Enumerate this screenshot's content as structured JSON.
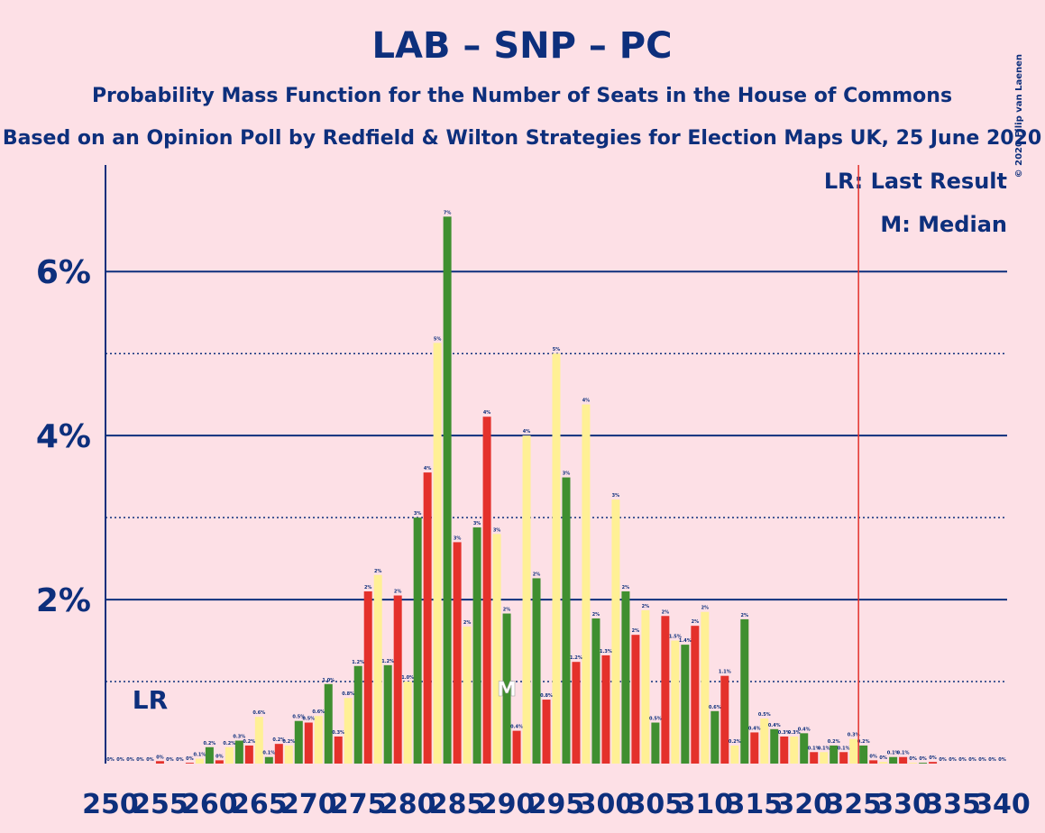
{
  "chart_data": {
    "type": "bar",
    "title": "LAB – SNP – PC",
    "subtitle": "Probability Mass Function for the Number of Seats in the House of Commons",
    "subtitle2": "Based on an Opinion Poll by Redfield & Wilton Strategies for Election Maps UK, 25 June 2020",
    "copyright": "© 2020 Filip van Laenen",
    "legend": [
      "LR: Last Result",
      "M: Median"
    ],
    "last_result": {
      "x": 254,
      "label": "LR"
    },
    "median": {
      "x": 290,
      "label": "M"
    },
    "majority_line": 325.5,
    "x": [
      250,
      251,
      252,
      253,
      254,
      255,
      256,
      257,
      258,
      259,
      260,
      261,
      262,
      263,
      264,
      265,
      266,
      267,
      268,
      269,
      270,
      271,
      272,
      273,
      274,
      275,
      276,
      277,
      278,
      279,
      280,
      281,
      282,
      283,
      284,
      285,
      286,
      287,
      288,
      289,
      290,
      291,
      292,
      293,
      294,
      295,
      296,
      297,
      298,
      299,
      300,
      301,
      302,
      303,
      304,
      305,
      306,
      307,
      308,
      309,
      310,
      311,
      312,
      313,
      314,
      315,
      316,
      317,
      318,
      319,
      320,
      321,
      322,
      323,
      324,
      325,
      326,
      327,
      328,
      329,
      330,
      331,
      332,
      333,
      334,
      335,
      336,
      337,
      338,
      339,
      340
    ],
    "values": [
      0,
      0,
      0,
      0,
      0,
      0.03,
      0,
      0,
      0.01,
      0.06,
      0.2,
      0.04,
      0.2,
      0.28,
      0.22,
      0.57,
      0.08,
      0.24,
      0.22,
      0.52,
      0.5,
      0.58,
      0.97,
      0.33,
      0.8,
      1.19,
      2.1,
      2.3,
      1.2,
      2.05,
      1.0,
      3.0,
      3.55,
      5.13,
      6.67,
      2.7,
      1.67,
      2.88,
      4.23,
      2.8,
      1.83,
      0.4,
      4.0,
      2.26,
      0.78,
      5.0,
      3.49,
      1.24,
      4.38,
      1.77,
      1.32,
      3.22,
      2.1,
      1.57,
      1.87,
      0.5,
      1.8,
      1.5,
      1.45,
      1.68,
      1.85,
      0.64,
      1.07,
      0.22,
      1.76,
      0.38,
      0.55,
      0.42,
      0.33,
      0.33,
      0.37,
      0.14,
      0.14,
      0.22,
      0.14,
      0.3,
      0.22,
      0.04,
      0.02,
      0.08,
      0.08,
      0.01,
      0.01,
      0.02,
      0,
      0,
      0,
      0,
      0,
      0,
      0
    ],
    "value_labels": [
      "0%",
      "0%",
      "0%",
      "0%",
      "0%",
      "0%",
      "0%",
      "0%",
      "0%",
      "0.1%",
      "0.2%",
      "0%",
      "0.2%",
      "0.3%",
      "0.2%",
      "0.6%",
      "0.1%",
      "0.2%",
      "0.2%",
      "0.5%",
      "0.5%",
      "0.6%",
      "1.0%",
      "0.3%",
      "0.8%",
      "1.2%",
      "2%",
      "2%",
      "1.2%",
      "2%",
      "1.0%",
      "3%",
      "4%",
      "5%",
      "7%",
      "3%",
      "2%",
      "3%",
      "4%",
      "3%",
      "2%",
      "0.4%",
      "4%",
      "2%",
      "0.8%",
      "5%",
      "3%",
      "1.2%",
      "4%",
      "2%",
      "1.3%",
      "3%",
      "2%",
      "2%",
      "2%",
      "0.5%",
      "2%",
      "1.5%",
      "1.4%",
      "2%",
      "2%",
      "0.6%",
      "1.1%",
      "0.2%",
      "2%",
      "0.4%",
      "0.5%",
      "0.4%",
      "0.3%",
      "0.3%",
      "0.4%",
      "0.1%",
      "0.1%",
      "0.2%",
      "0.1%",
      "0.3%",
      "0.2%",
      "0%",
      "0%",
      "0.1%",
      "0.1%",
      "0%",
      "0%",
      "0%",
      "0%",
      "0%",
      "0%",
      "0%",
      "0%",
      "0%",
      "0%"
    ],
    "colors": [
      "#fff095",
      "#3f8f30",
      "#e4312b"
    ],
    "xlim": [
      249.5,
      340.5
    ],
    "xticks": [
      250,
      255,
      260,
      265,
      270,
      275,
      280,
      285,
      290,
      295,
      300,
      305,
      310,
      315,
      320,
      325,
      330,
      335,
      340
    ],
    "ylim": [
      0,
      7.3
    ],
    "yticks": [
      {
        "value": 2,
        "label": "2%"
      },
      {
        "value": 4,
        "label": "4%"
      },
      {
        "value": 6,
        "label": "6%"
      }
    ],
    "minor_yticks": [
      1,
      3,
      5
    ],
    "grid": true
  }
}
